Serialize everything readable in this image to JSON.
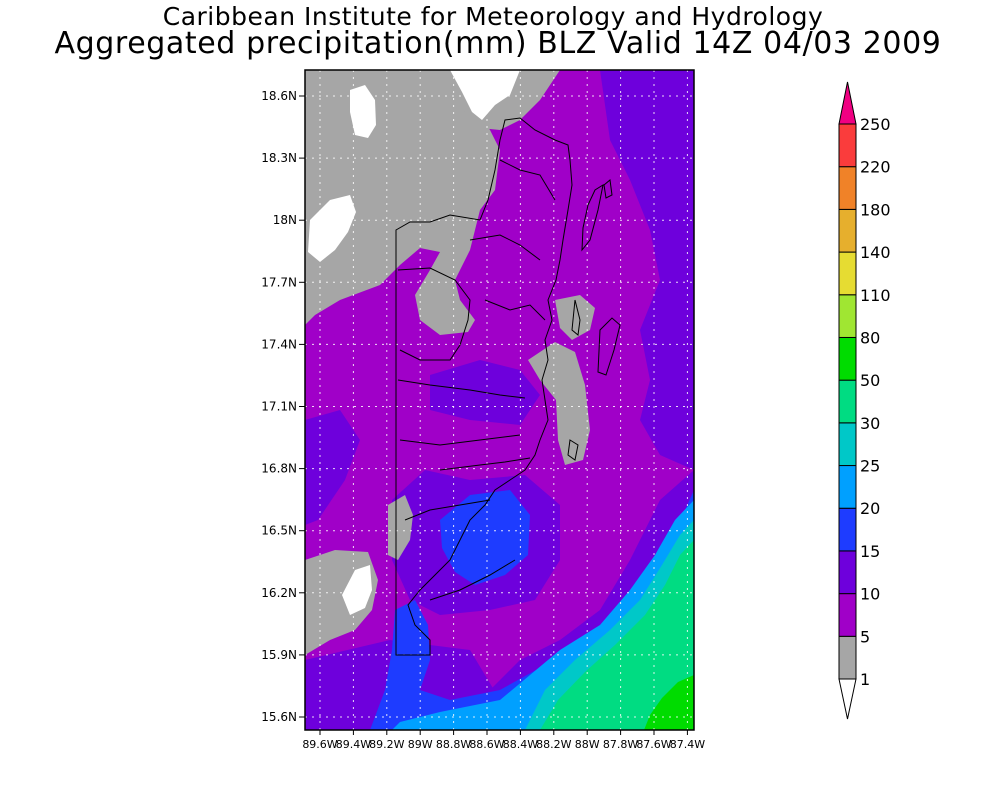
{
  "title_line1": "Caribbean Institute for Meteorology and Hydrology",
  "title_line2": "Aggregated precipitation(mm) BLZ Valid 14Z 04/03 2009",
  "map": {
    "lat_labels": [
      "18.6N",
      "18.3N",
      "18N",
      "17.7N",
      "17.4N",
      "17.1N",
      "16.8N",
      "16.5N",
      "16.2N",
      "15.9N",
      "15.6N"
    ],
    "lon_labels": [
      "89.6W",
      "89.4W",
      "89.2W",
      "89W",
      "88.8W",
      "88.6W",
      "88.4W",
      "88.2W",
      "88W",
      "87.8W",
      "87.6W",
      "87.4W"
    ]
  },
  "colorbar": {
    "levels": [
      "1",
      "5",
      "10",
      "15",
      "20",
      "25",
      "30",
      "50",
      "80",
      "110",
      "140",
      "180",
      "220",
      "250"
    ],
    "colors": {
      "lt1": "#ffffff",
      "1-5": "#a6a6a6",
      "5-10": "#a000c8",
      "10-15": "#6e00dc",
      "15-20": "#1e3cff",
      "20-25": "#00a0ff",
      "25-30": "#00c8c8",
      "30-50": "#00dc82",
      "50-80": "#00dc00",
      "80-110": "#a0e632",
      "110-140": "#e6dc32",
      "140-180": "#e6af2d",
      "180-220": "#f08228",
      "220-250": "#fa3c3c",
      "gt250": "#f00082"
    }
  }
}
